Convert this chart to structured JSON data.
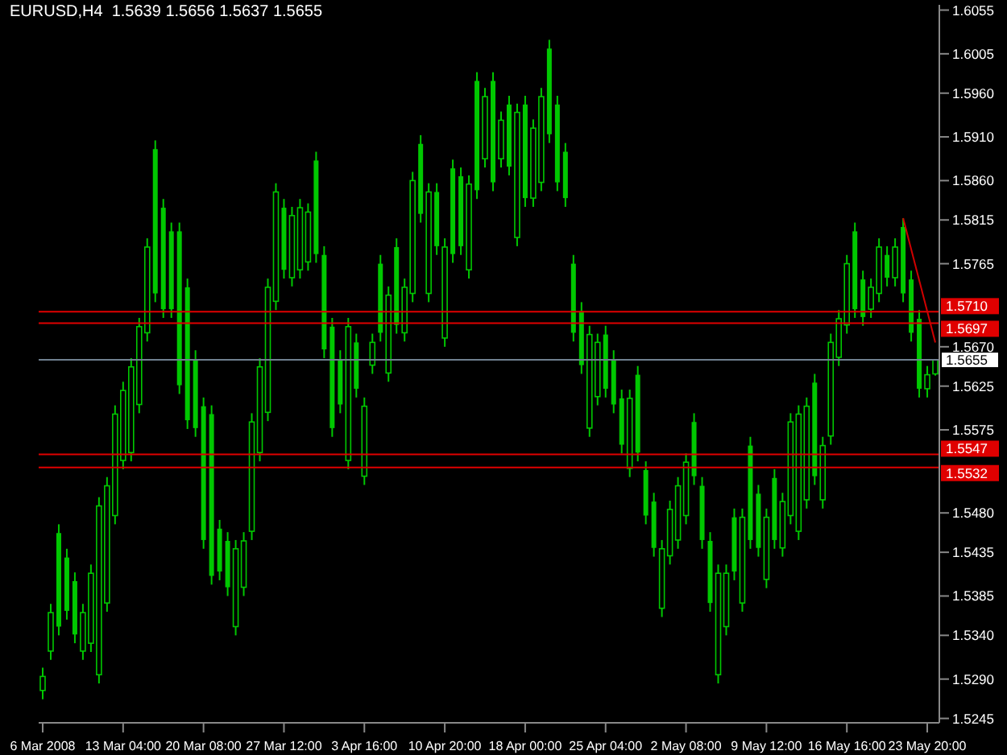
{
  "chart_data": {
    "type": "candlestick",
    "title": "EURUSD,H4  1.5639 1.5656 1.5637 1.5655",
    "categories": [
      "6 Mar 2008",
      null,
      null,
      null,
      null,
      null,
      null,
      null,
      null,
      null,
      "13 Mar 04:00",
      null,
      null,
      null,
      null,
      null,
      null,
      null,
      null,
      null,
      "20 Mar 08:00",
      null,
      null,
      null,
      null,
      null,
      null,
      null,
      null,
      null,
      "27 Mar 12:00",
      null,
      null,
      null,
      null,
      null,
      null,
      null,
      null,
      null,
      "3 Apr 16:00",
      null,
      null,
      null,
      null,
      null,
      null,
      null,
      null,
      null,
      "10 Apr 20:00",
      null,
      null,
      null,
      null,
      null,
      null,
      null,
      null,
      null,
      "18 Apr 00:00",
      null,
      null,
      null,
      null,
      null,
      null,
      null,
      null,
      null,
      "25 Apr 04:00",
      null,
      null,
      null,
      null,
      null,
      null,
      null,
      null,
      null,
      "2 May 08:00",
      null,
      null,
      null,
      null,
      null,
      null,
      null,
      null,
      null,
      "9 May 12:00",
      null,
      null,
      null,
      null,
      null,
      null,
      null,
      null,
      null,
      "16 May 16:00",
      null,
      null,
      null,
      null,
      null,
      null,
      null,
      null,
      null,
      "23 May 20:00",
      null
    ],
    "series": [
      {
        "color": "#00c800",
        "ohlc": [
          [
            1.5277,
            1.5303,
            1.5267,
            1.5293
          ],
          [
            1.5322,
            1.5376,
            1.5312,
            1.5366
          ],
          [
            1.5457,
            1.5467,
            1.534,
            1.535
          ],
          [
            1.5429,
            1.5439,
            1.5358,
            1.5368
          ],
          [
            1.5402,
            1.5412,
            1.5331,
            1.5341
          ],
          [
            1.5322,
            1.5376,
            1.5312,
            1.5366
          ],
          [
            1.5331,
            1.5421,
            1.5321,
            1.5411
          ],
          [
            1.5295,
            1.5498,
            1.5285,
            1.5488
          ],
          [
            1.5377,
            1.5521,
            1.5367,
            1.5511
          ],
          [
            1.5477,
            1.5603,
            1.5467,
            1.5593
          ],
          [
            1.554,
            1.563,
            1.553,
            1.562
          ],
          [
            1.5549,
            1.5657,
            1.5539,
            1.5647
          ],
          [
            1.5604,
            1.5703,
            1.5594,
            1.5693
          ],
          [
            1.5686,
            1.5794,
            1.5676,
            1.5784
          ],
          [
            1.5896,
            1.5906,
            1.5721,
            1.5731
          ],
          [
            1.5829,
            1.5839,
            1.5703,
            1.5713
          ],
          [
            1.5802,
            1.5812,
            1.5703,
            1.5713
          ],
          [
            1.5802,
            1.5812,
            1.5616,
            1.5626
          ],
          [
            1.5738,
            1.5748,
            1.5576,
            1.5586
          ],
          [
            1.5656,
            1.5666,
            1.5567,
            1.5577
          ],
          [
            1.5602,
            1.5612,
            1.5439,
            1.5449
          ],
          [
            1.5593,
            1.5603,
            1.5398,
            1.5408
          ],
          [
            1.5462,
            1.5472,
            1.5403,
            1.5413
          ],
          [
            1.5448,
            1.5458,
            1.5385,
            1.5395
          ],
          [
            1.535,
            1.5449,
            1.534,
            1.5439
          ],
          [
            1.5395,
            1.5458,
            1.5385,
            1.5448
          ],
          [
            1.5459,
            1.5594,
            1.5449,
            1.5584
          ],
          [
            1.5549,
            1.5657,
            1.5539,
            1.5647
          ],
          [
            1.5595,
            1.5748,
            1.5585,
            1.5738
          ],
          [
            1.5722,
            1.5857,
            1.5712,
            1.5847
          ],
          [
            1.5829,
            1.5839,
            1.5748,
            1.5758
          ],
          [
            1.5749,
            1.583,
            1.5739,
            1.582
          ],
          [
            1.5758,
            1.5839,
            1.5748,
            1.5829
          ],
          [
            1.5767,
            1.5834,
            1.5757,
            1.5824
          ],
          [
            1.5883,
            1.5893,
            1.5766,
            1.5776
          ],
          [
            1.5775,
            1.5785,
            1.5657,
            1.5667
          ],
          [
            1.5693,
            1.5703,
            1.5567,
            1.5577
          ],
          [
            1.5656,
            1.5666,
            1.5594,
            1.5604
          ],
          [
            1.554,
            1.5703,
            1.553,
            1.5693
          ],
          [
            1.5675,
            1.5685,
            1.5612,
            1.5622
          ],
          [
            1.5522,
            1.5612,
            1.5512,
            1.5602
          ],
          [
            1.5649,
            1.5685,
            1.5639,
            1.5675
          ],
          [
            1.5765,
            1.5775,
            1.5676,
            1.5686
          ],
          [
            1.564,
            1.5739,
            1.563,
            1.5729
          ],
          [
            1.5784,
            1.5794,
            1.5685,
            1.5695
          ],
          [
            1.5686,
            1.5748,
            1.5676,
            1.5738
          ],
          [
            1.5731,
            1.587,
            1.5721,
            1.586
          ],
          [
            1.5902,
            1.5912,
            1.5812,
            1.5822
          ],
          [
            1.5731,
            1.5857,
            1.5721,
            1.5847
          ],
          [
            1.5847,
            1.5857,
            1.5775,
            1.5785
          ],
          [
            1.568,
            1.5794,
            1.567,
            1.5784
          ],
          [
            1.5874,
            1.5884,
            1.5766,
            1.5776
          ],
          [
            1.5865,
            1.5875,
            1.5775,
            1.5785
          ],
          [
            1.5758,
            1.5866,
            1.5748,
            1.5856
          ],
          [
            1.5974,
            1.5984,
            1.5839,
            1.5849
          ],
          [
            1.5885,
            1.5966,
            1.5875,
            1.5956
          ],
          [
            1.5974,
            1.5984,
            1.5848,
            1.5858
          ],
          [
            1.5885,
            1.5939,
            1.5875,
            1.5929
          ],
          [
            1.5947,
            1.5957,
            1.5866,
            1.5876
          ],
          [
            1.5795,
            1.5948,
            1.5785,
            1.5938
          ],
          [
            1.5947,
            1.5957,
            1.583,
            1.584
          ],
          [
            1.584,
            1.593,
            1.583,
            1.592
          ],
          [
            1.5858,
            1.5966,
            1.5848,
            1.5956
          ],
          [
            1.6011,
            1.6021,
            1.5903,
            1.5913
          ],
          [
            1.5947,
            1.5957,
            1.5848,
            1.5858
          ],
          [
            1.5893,
            1.5903,
            1.583,
            1.584
          ],
          [
            1.5765,
            1.5775,
            1.5676,
            1.5686
          ],
          [
            1.5711,
            1.5721,
            1.5639,
            1.5649
          ],
          [
            1.5577,
            1.5694,
            1.5567,
            1.5684
          ],
          [
            1.5613,
            1.5685,
            1.5603,
            1.5675
          ],
          [
            1.5684,
            1.5694,
            1.5612,
            1.5622
          ],
          [
            1.5656,
            1.5666,
            1.5594,
            1.5604
          ],
          [
            1.5611,
            1.5621,
            1.5548,
            1.5558
          ],
          [
            1.5531,
            1.5621,
            1.5521,
            1.5611
          ],
          [
            1.5638,
            1.5648,
            1.5539,
            1.5549
          ],
          [
            1.5529,
            1.5539,
            1.5467,
            1.5477
          ],
          [
            1.5493,
            1.5503,
            1.543,
            1.544
          ],
          [
            1.5371,
            1.5449,
            1.5361,
            1.5439
          ],
          [
            1.5431,
            1.5494,
            1.5421,
            1.5484
          ],
          [
            1.5449,
            1.5521,
            1.5439,
            1.5511
          ],
          [
            1.5477,
            1.5548,
            1.5467,
            1.5538
          ],
          [
            1.5584,
            1.5594,
            1.5512,
            1.5522
          ],
          [
            1.5511,
            1.5521,
            1.5439,
            1.5449
          ],
          [
            1.5448,
            1.5458,
            1.5367,
            1.5377
          ],
          [
            1.5295,
            1.5421,
            1.5285,
            1.5411
          ],
          [
            1.535,
            1.5421,
            1.534,
            1.5411
          ],
          [
            1.5475,
            1.5485,
            1.5403,
            1.5413
          ],
          [
            1.5377,
            1.5485,
            1.5367,
            1.5475
          ],
          [
            1.5557,
            1.5567,
            1.5439,
            1.5449
          ],
          [
            1.5502,
            1.5512,
            1.543,
            1.544
          ],
          [
            1.5404,
            1.5485,
            1.5394,
            1.5475
          ],
          [
            1.552,
            1.553,
            1.5439,
            1.5449
          ],
          [
            1.544,
            1.5503,
            1.543,
            1.5493
          ],
          [
            1.5477,
            1.5594,
            1.5467,
            1.5584
          ],
          [
            1.5459,
            1.5603,
            1.5449,
            1.5593
          ],
          [
            1.5495,
            1.5612,
            1.5485,
            1.5602
          ],
          [
            1.5629,
            1.5639,
            1.5512,
            1.5522
          ],
          [
            1.5495,
            1.5567,
            1.5485,
            1.5557
          ],
          [
            1.5568,
            1.5685,
            1.5558,
            1.5675
          ],
          [
            1.5658,
            1.5712,
            1.5648,
            1.5702
          ],
          [
            1.5695,
            1.5775,
            1.5685,
            1.5765
          ],
          [
            1.5802,
            1.5812,
            1.5703,
            1.5713
          ],
          [
            1.5747,
            1.5757,
            1.5694,
            1.5704
          ],
          [
            1.5713,
            1.5748,
            1.5703,
            1.5738
          ],
          [
            1.5731,
            1.5794,
            1.5721,
            1.5784
          ],
          [
            1.5775,
            1.5785,
            1.5739,
            1.5749
          ],
          [
            1.5749,
            1.5794,
            1.5739,
            1.5784
          ],
          [
            1.5807,
            1.5817,
            1.5721,
            1.5731
          ],
          [
            1.5747,
            1.5757,
            1.5676,
            1.5686
          ],
          [
            1.5702,
            1.5712,
            1.5612,
            1.5622
          ],
          [
            1.5622,
            1.5648,
            1.5612,
            1.5638
          ],
          [
            1.5639,
            1.5656,
            1.5637,
            1.5655
          ]
        ]
      },
      {
        "type": "line",
        "color": "#d00000",
        "values": [
          null,
          null,
          null,
          null,
          null,
          null,
          null,
          null,
          null,
          null,
          null,
          null,
          null,
          null,
          null,
          null,
          null,
          null,
          null,
          null,
          null,
          null,
          null,
          null,
          null,
          null,
          null,
          null,
          null,
          null,
          null,
          null,
          null,
          null,
          null,
          null,
          null,
          null,
          null,
          null,
          null,
          null,
          null,
          null,
          null,
          null,
          null,
          null,
          null,
          null,
          null,
          null,
          null,
          null,
          null,
          null,
          null,
          null,
          null,
          null,
          null,
          null,
          null,
          null,
          null,
          null,
          null,
          null,
          null,
          null,
          null,
          null,
          null,
          null,
          null,
          null,
          null,
          null,
          null,
          null,
          null,
          null,
          null,
          null,
          null,
          null,
          null,
          null,
          null,
          null,
          null,
          null,
          null,
          null,
          null,
          null,
          null,
          null,
          null,
          null,
          null,
          null,
          null,
          null,
          null,
          null,
          null,
          1.5817,
          null,
          null,
          null,
          1.5675
        ]
      }
    ],
    "ylim": [
      1.524,
      1.6061
    ],
    "yticks": [
      1.6055,
      1.6005,
      {
        "value": 1.596,
        "label": "1.5960"
      },
      {
        "value": 1.591,
        "label": "1.5910"
      },
      {
        "value": 1.586,
        "label": "1.5860"
      },
      1.5815,
      1.5765,
      {
        "value": 1.567,
        "label": "1.5670"
      },
      1.5625,
      1.5575,
      {
        "value": 1.548,
        "label": "1.5480"
      },
      1.5435,
      1.5385,
      {
        "value": 1.534,
        "label": "1.5340"
      },
      {
        "value": 1.529,
        "label": "1.5290"
      },
      1.5245
    ],
    "ref_lines": [
      {
        "axis": "y",
        "value": 1.571,
        "label": "1.5710",
        "color": "#e00000"
      },
      {
        "axis": "y",
        "value": 1.5697,
        "label": "1.5697",
        "color": "#e00000"
      },
      {
        "axis": "y",
        "value": 1.5655,
        "label": "1.5655",
        "color": "#708090"
      },
      {
        "axis": "y",
        "value": 1.5547,
        "label": "1.5547",
        "color": "#e00000"
      },
      {
        "axis": "y",
        "value": 1.5532,
        "label": "1.5532",
        "color": "#e00000"
      }
    ],
    "grid": false,
    "legend": false
  }
}
